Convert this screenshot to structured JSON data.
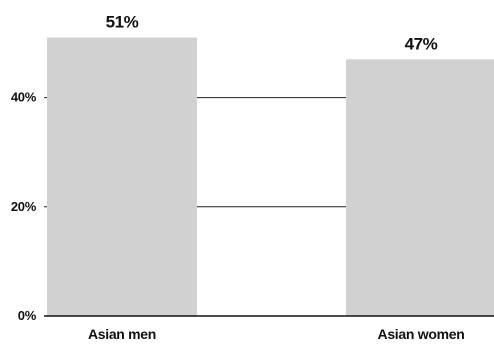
{
  "chart_data": {
    "type": "bar",
    "categories": [
      "Asian men",
      "Asian women"
    ],
    "values": [
      51,
      47
    ],
    "data_labels": [
      "51%",
      "47%"
    ],
    "yticks": [
      0,
      20,
      40
    ],
    "ytick_labels": [
      "0%",
      "20%",
      "40%"
    ],
    "ylim": [
      0,
      55
    ],
    "grid": true,
    "legend": "none",
    "bar_color": "#d1d1d1",
    "grid_color": "#222222",
    "axis_color": "#111111",
    "title": "",
    "xlabel": "",
    "ylabel": ""
  }
}
